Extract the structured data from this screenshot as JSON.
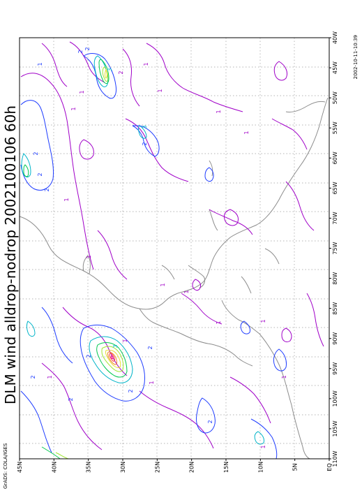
{
  "title": "DLM wind alldrop-nodrop 2002100106 60h",
  "footer_left": "GrADS: COLA/IGES",
  "footer_right": "2002-10-11-10:39",
  "lon_ticks": [
    "110W",
    "105W",
    "100W",
    "95W",
    "90W",
    "85W",
    "80W",
    "75W",
    "70W",
    "65W",
    "60W",
    "55W",
    "50W",
    "45W",
    "40W"
  ],
  "lat_ticks": [
    "EQ",
    "5N",
    "10N",
    "15N",
    "20N",
    "25N",
    "30N",
    "35N",
    "40N",
    "45N"
  ],
  "contour_labels": [
    "1",
    "2",
    "3",
    "2",
    "2",
    "1",
    "2",
    "1",
    "2",
    "2",
    "1",
    "1",
    "3",
    "2",
    "1",
    "1",
    "1",
    "1",
    "1",
    "1",
    "2",
    "1",
    "2",
    "3",
    "1",
    "2",
    "2",
    "2",
    "1",
    "1",
    "1",
    "1",
    "2",
    "1"
  ],
  "colors": {
    "frame": "#000000",
    "grid": "#9a9a9a",
    "coast": "#8c8c8c",
    "contour_1": "#a000c8",
    "contour_2": "#1e3cff",
    "contour_3": "#00b4c8",
    "contour_4": "#00c850",
    "contour_5": "#a0e632",
    "contour_6": "#e6dc32",
    "contour_7": "#f08228",
    "contour_8": "#fa3c3c",
    "contour_9": "#f00082"
  }
}
